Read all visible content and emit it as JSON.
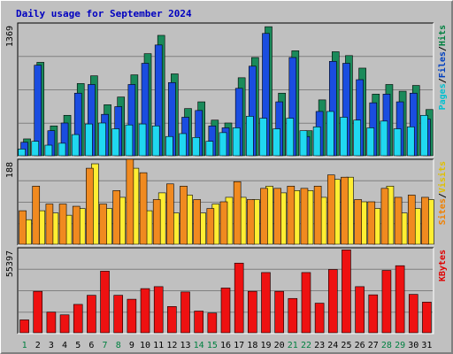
{
  "chart_data": {
    "type": "bar",
    "title": "Daily usage for September 2024",
    "categories": [
      "1",
      "2",
      "3",
      "4",
      "5",
      "6",
      "7",
      "8",
      "9",
      "10",
      "11",
      "12",
      "13",
      "14",
      "15",
      "16",
      "17",
      "18",
      "19",
      "20",
      "21",
      "22",
      "23",
      "24",
      "25",
      "26",
      "27",
      "28",
      "29",
      "30",
      "31"
    ],
    "weekend_days": [
      "1",
      "7",
      "8",
      "14",
      "15",
      "21",
      "22",
      "28",
      "29"
    ],
    "panels": [
      {
        "max_label": "1369",
        "right_label": [
          "Pages",
          "/",
          "Files",
          "/",
          "Hits"
        ],
        "right_label_colors": [
          "#00c0d0",
          "#000000",
          "#0040c0",
          "#000000",
          "#008040"
        ],
        "ylim": [
          0,
          1369
        ],
        "series": [
          {
            "name": "Hits",
            "color": "#1a8a5a",
            "values": [
              175,
              970,
              310,
              420,
              750,
              830,
              530,
              610,
              840,
              1060,
              1250,
              850,
              490,
              560,
              370,
              340,
              810,
              1020,
              1340,
              650,
              1090,
              260,
              580,
              1080,
              1040,
              910,
              640,
              740,
              670,
              730,
              480
            ]
          },
          {
            "name": "Files",
            "color": "#1a4de0",
            "values": [
              140,
              940,
              260,
              340,
              650,
              740,
              430,
              510,
              740,
              960,
              1150,
              760,
              400,
              470,
              310,
              290,
              700,
              930,
              1270,
              560,
              1020,
              200,
              460,
              980,
              960,
              790,
              550,
              640,
              560,
              650,
              380
            ]
          },
          {
            "name": "Pages",
            "color": "#20d8f0",
            "values": [
              70,
              150,
              110,
              130,
              220,
              330,
              340,
              280,
              320,
              330,
              310,
              200,
              230,
              190,
              150,
              240,
              290,
              410,
              390,
              280,
              390,
              260,
              300,
              460,
              400,
              370,
              290,
              360,
              280,
              300,
              420
            ]
          }
        ]
      },
      {
        "max_label": "188",
        "right_label": [
          "Sites",
          "/",
          "Visits"
        ],
        "right_label_colors": [
          "#f08000",
          "#000000",
          "#e0c000"
        ],
        "ylim": [
          0,
          188
        ],
        "series": [
          {
            "name": "Visits",
            "color": "#ffee33",
            "values": [
              55,
              75,
              70,
              65,
              80,
              180,
              80,
              105,
              170,
              75,
              115,
              70,
              110,
              70,
              90,
              105,
              105,
              100,
              130,
              115,
              120,
              120,
              105,
              145,
              150,
              95,
              80,
              130,
              70,
              80,
              100
            ]
          },
          {
            "name": "Sites",
            "color": "#f08a20",
            "values": [
              75,
              130,
              90,
              90,
              85,
              170,
              90,
              120,
              190,
              160,
              100,
              135,
              130,
              100,
              80,
              95,
              140,
              100,
              125,
              125,
              130,
              125,
              130,
              155,
              150,
              100,
              95,
              125,
              105,
              110,
              105
            ]
          }
        ]
      },
      {
        "max_label": "55397",
        "right_label": [
          "KBytes"
        ],
        "right_label_colors": [
          "#e00000"
        ],
        "ylim": [
          0,
          55397
        ],
        "series": [
          {
            "name": "KBytes",
            "color": "#ee1111",
            "values": [
              8500,
              27300,
              13600,
              11800,
              18700,
              24700,
              40600,
              24700,
              22100,
              29100,
              30400,
              17300,
              26900,
              14300,
              13000,
              29500,
              45900,
              27300,
              39700,
              27300,
              22600,
              39700,
              19500,
              41700,
              54600,
              30400,
              25000,
              41100,
              44200,
              25300,
              20200
            ]
          }
        ]
      }
    ]
  }
}
